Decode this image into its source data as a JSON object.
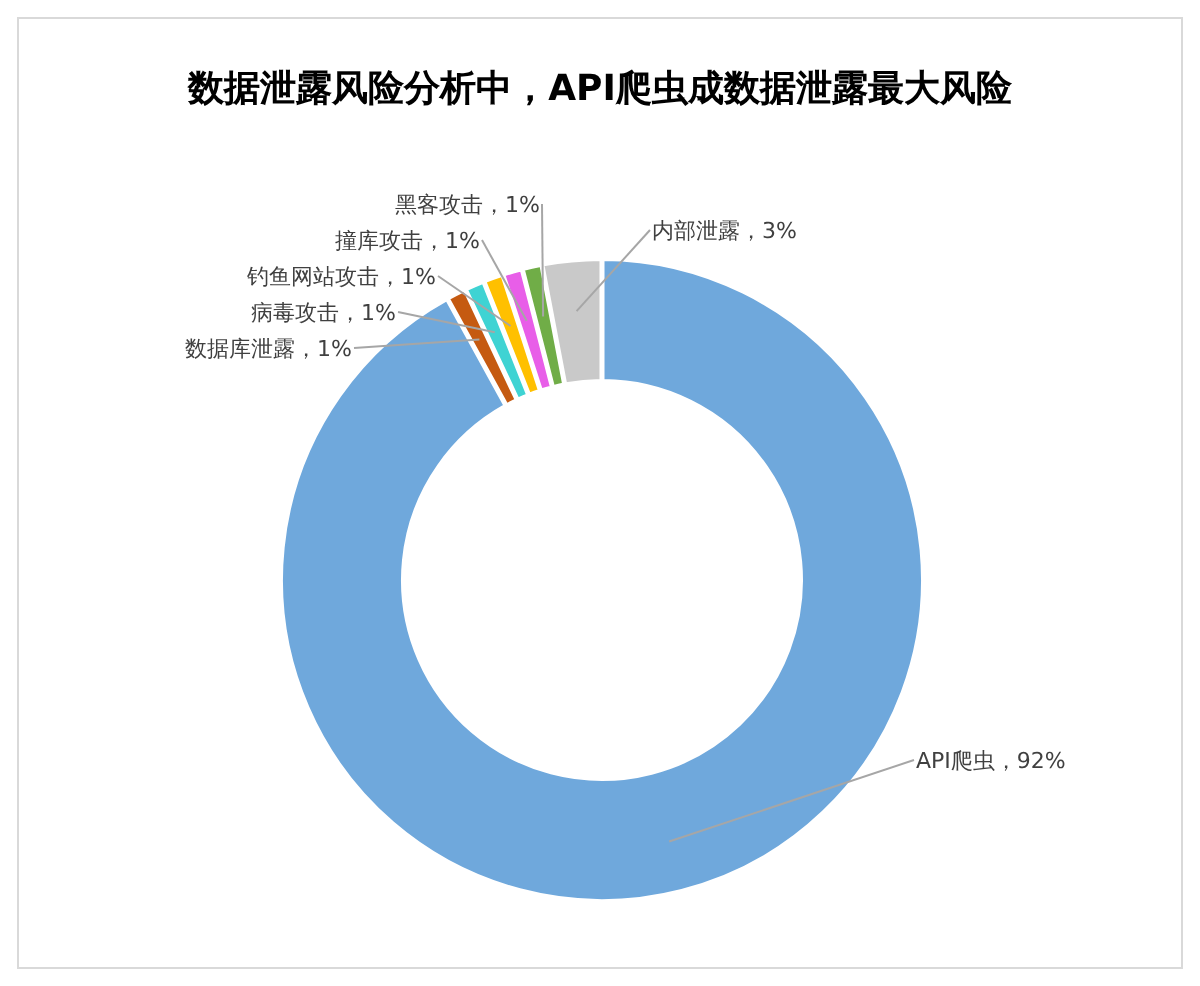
{
  "chart_data": {
    "type": "donut",
    "title": "数据泄露风险分析中，API爬虫成数据泄露最大风险",
    "categories": [
      "API爬虫",
      "数据库泄露",
      "病毒攻击",
      "钓鱼网站攻击",
      "撞库攻击",
      "黑客攻击",
      "内部泄露"
    ],
    "values": [
      92,
      1,
      1,
      1,
      1,
      1,
      3
    ],
    "colors": [
      "#6fa8dc",
      "#c55a11",
      "#3fd3d3",
      "#ffc000",
      "#e85ee8",
      "#70ad47",
      "#c9c9c9"
    ],
    "value_labels": [
      "，92%",
      "，1%",
      "，1%",
      "，1%",
      "，1%",
      "，1%",
      "，3%"
    ]
  }
}
